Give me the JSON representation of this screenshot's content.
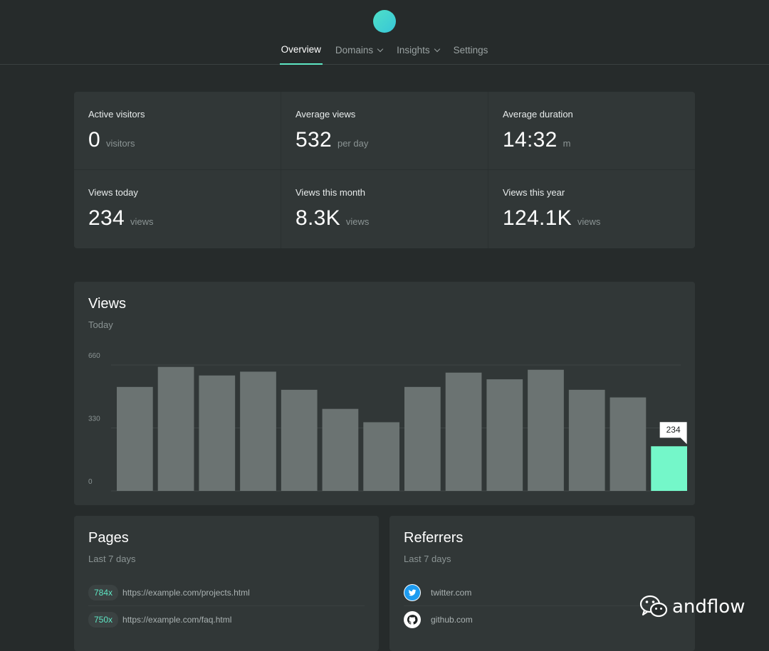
{
  "nav": {
    "items": [
      {
        "label": "Overview",
        "active": true,
        "dropdown": false
      },
      {
        "label": "Domains",
        "active": false,
        "dropdown": true
      },
      {
        "label": "Insights",
        "active": false,
        "dropdown": true
      },
      {
        "label": "Settings",
        "active": false,
        "dropdown": false
      }
    ]
  },
  "stats": [
    {
      "label": "Active visitors",
      "value": "0",
      "unit": "visitors"
    },
    {
      "label": "Average views",
      "value": "532",
      "unit": "per day"
    },
    {
      "label": "Average duration",
      "value": "14:32",
      "unit": "m"
    },
    {
      "label": "Views today",
      "value": "234",
      "unit": "views"
    },
    {
      "label": "Views this month",
      "value": "8.3K",
      "unit": "views"
    },
    {
      "label": "Views this year",
      "value": "124.1K",
      "unit": "views"
    }
  ],
  "views_card": {
    "title": "Views",
    "subtitle": "Today"
  },
  "chart_data": {
    "type": "bar",
    "title": "Views",
    "subtitle": "Today",
    "ylim": [
      0,
      660
    ],
    "yticks": [
      "660",
      "330",
      "0"
    ],
    "grid": true,
    "values": [
      545,
      650,
      605,
      625,
      530,
      430,
      360,
      545,
      620,
      585,
      635,
      530,
      490,
      234
    ],
    "highlight_index": 13,
    "highlight_label": "234",
    "colors": {
      "bar": "#6b7372",
      "highlight": "#74f7c9",
      "grid": "#3f4646",
      "axis_text": "#8b9494"
    }
  },
  "pages_card": {
    "title": "Pages",
    "subtitle": "Last 7 days",
    "rows": [
      {
        "count": "784x",
        "url": "https://example.com/projects.html"
      },
      {
        "count": "750x",
        "url": "https://example.com/faq.html"
      }
    ]
  },
  "referrers_card": {
    "title": "Referrers",
    "subtitle": "Last 7 days",
    "rows": [
      {
        "icon": "twitter-icon",
        "name": "twitter.com"
      },
      {
        "icon": "github-icon",
        "name": "github.com"
      }
    ]
  },
  "watermark": {
    "text": "andflow",
    "icon": "wechat-icon"
  },
  "colors": {
    "accent": "#5ee7c4",
    "background": "#262b2b",
    "card": "#313737"
  }
}
